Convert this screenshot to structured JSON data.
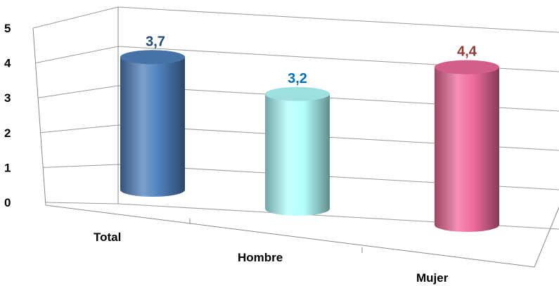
{
  "chart_data": {
    "type": "bar",
    "style": "3d-cylinder",
    "categories": [
      "Total",
      "Hombre",
      "Mujer"
    ],
    "values": [
      3.7,
      3.2,
      4.4
    ],
    "value_labels": [
      "3,7",
      "3,2",
      "4,4"
    ],
    "colors": [
      "#4f81bd",
      "#b3ffff",
      "#f06b9c"
    ],
    "label_colors": [
      "#1f497d",
      "#0070c0",
      "#953735"
    ],
    "yticks": [
      "0",
      "1",
      "2",
      "3",
      "4",
      "5"
    ],
    "ylim": [
      0,
      5
    ],
    "grid": true,
    "legend": "none",
    "title": "",
    "xlabel": "",
    "ylabel": ""
  }
}
